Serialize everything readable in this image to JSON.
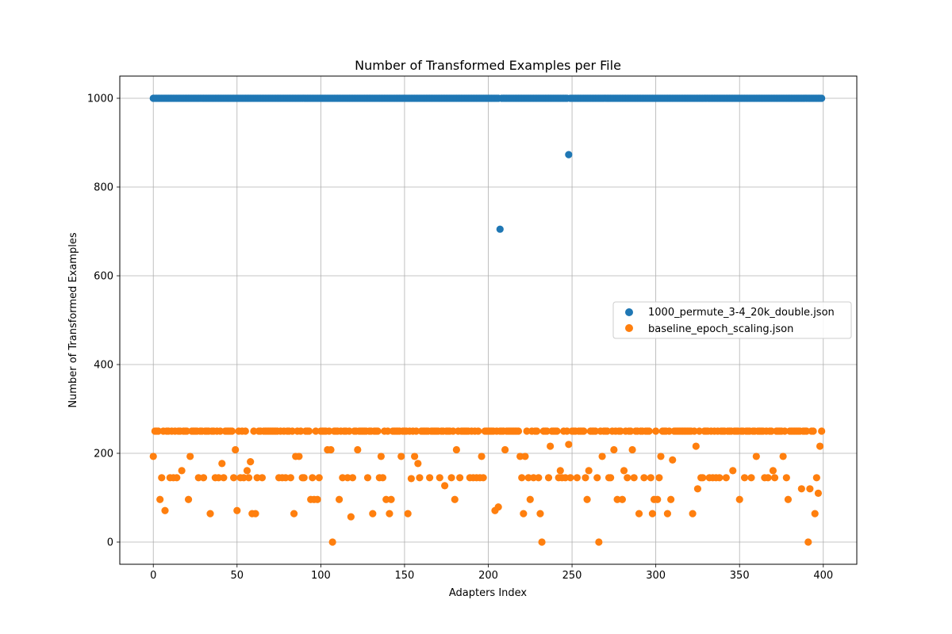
{
  "chart_data": {
    "type": "scatter",
    "title": "Number of Transformed Examples per File",
    "xlabel": "Adapters Index",
    "ylabel": "Number of Transformed Examples",
    "xlim": [
      -20,
      420
    ],
    "ylim": [
      -50,
      1050
    ],
    "xticks": [
      0,
      50,
      100,
      150,
      200,
      250,
      300,
      350,
      400
    ],
    "yticks": [
      0,
      200,
      400,
      600,
      800,
      1000
    ],
    "grid": true,
    "legend_position": "center-right",
    "series": [
      {
        "name": "1000_permute_3-4_20k_double.json",
        "color": "#1f77b4",
        "default_y": 1000,
        "x_range": [
          0,
          399
        ],
        "exceptions": [
          {
            "x": 207,
            "y": 705
          },
          {
            "x": 248,
            "y": 873
          }
        ]
      },
      {
        "name": "baseline_epoch_scaling.json",
        "color": "#ff7f0e",
        "default_y": 250,
        "x_range": [
          0,
          399
        ],
        "exceptions": [
          {
            "x": 0,
            "y": 193
          },
          {
            "x": 4,
            "y": 96
          },
          {
            "x": 5,
            "y": 145
          },
          {
            "x": 7,
            "y": 71
          },
          {
            "x": 10,
            "y": 145
          },
          {
            "x": 12,
            "y": 145
          },
          {
            "x": 14,
            "y": 145
          },
          {
            "x": 17,
            "y": 161
          },
          {
            "x": 21,
            "y": 96
          },
          {
            "x": 22,
            "y": 193
          },
          {
            "x": 27,
            "y": 145
          },
          {
            "x": 30,
            "y": 145
          },
          {
            "x": 34,
            "y": 64
          },
          {
            "x": 37,
            "y": 145
          },
          {
            "x": 39,
            "y": 145
          },
          {
            "x": 41,
            "y": 177
          },
          {
            "x": 42,
            "y": 145
          },
          {
            "x": 48,
            "y": 145
          },
          {
            "x": 49,
            "y": 208
          },
          {
            "x": 50,
            "y": 71
          },
          {
            "x": 52,
            "y": 145
          },
          {
            "x": 54,
            "y": 145
          },
          {
            "x": 56,
            "y": 161
          },
          {
            "x": 57,
            "y": 145
          },
          {
            "x": 58,
            "y": 181
          },
          {
            "x": 59,
            "y": 64
          },
          {
            "x": 61,
            "y": 64
          },
          {
            "x": 62,
            "y": 145
          },
          {
            "x": 65,
            "y": 145
          },
          {
            "x": 75,
            "y": 145
          },
          {
            "x": 77,
            "y": 145
          },
          {
            "x": 79,
            "y": 145
          },
          {
            "x": 82,
            "y": 145
          },
          {
            "x": 84,
            "y": 64
          },
          {
            "x": 85,
            "y": 193
          },
          {
            "x": 87,
            "y": 193
          },
          {
            "x": 89,
            "y": 145
          },
          {
            "x": 90,
            "y": 145
          },
          {
            "x": 94,
            "y": 96
          },
          {
            "x": 95,
            "y": 145
          },
          {
            "x": 96,
            "y": 96
          },
          {
            "x": 98,
            "y": 96
          },
          {
            "x": 99,
            "y": 145
          },
          {
            "x": 104,
            "y": 208
          },
          {
            "x": 106,
            "y": 208
          },
          {
            "x": 107,
            "y": 0
          },
          {
            "x": 111,
            "y": 96
          },
          {
            "x": 113,
            "y": 145
          },
          {
            "x": 116,
            "y": 145
          },
          {
            "x": 118,
            "y": 57
          },
          {
            "x": 119,
            "y": 145
          },
          {
            "x": 122,
            "y": 208
          },
          {
            "x": 128,
            "y": 145
          },
          {
            "x": 131,
            "y": 64
          },
          {
            "x": 135,
            "y": 145
          },
          {
            "x": 136,
            "y": 193
          },
          {
            "x": 137,
            "y": 145
          },
          {
            "x": 139,
            "y": 96
          },
          {
            "x": 141,
            "y": 64
          },
          {
            "x": 142,
            "y": 96
          },
          {
            "x": 148,
            "y": 193
          },
          {
            "x": 152,
            "y": 64
          },
          {
            "x": 154,
            "y": 143
          },
          {
            "x": 156,
            "y": 193
          },
          {
            "x": 158,
            "y": 177
          },
          {
            "x": 159,
            "y": 145
          },
          {
            "x": 165,
            "y": 145
          },
          {
            "x": 171,
            "y": 145
          },
          {
            "x": 174,
            "y": 127
          },
          {
            "x": 178,
            "y": 145
          },
          {
            "x": 180,
            "y": 96
          },
          {
            "x": 181,
            "y": 208
          },
          {
            "x": 183,
            "y": 145
          },
          {
            "x": 189,
            "y": 145
          },
          {
            "x": 191,
            "y": 145
          },
          {
            "x": 193,
            "y": 145
          },
          {
            "x": 195,
            "y": 145
          },
          {
            "x": 196,
            "y": 193
          },
          {
            "x": 197,
            "y": 145
          },
          {
            "x": 204,
            "y": 71
          },
          {
            "x": 206,
            "y": 79
          },
          {
            "x": 210,
            "y": 208
          },
          {
            "x": 219,
            "y": 193
          },
          {
            "x": 220,
            "y": 145
          },
          {
            "x": 221,
            "y": 64
          },
          {
            "x": 222,
            "y": 193
          },
          {
            "x": 224,
            "y": 145
          },
          {
            "x": 225,
            "y": 96
          },
          {
            "x": 227,
            "y": 145
          },
          {
            "x": 230,
            "y": 145
          },
          {
            "x": 231,
            "y": 64
          },
          {
            "x": 232,
            "y": 0
          },
          {
            "x": 236,
            "y": 145
          },
          {
            "x": 237,
            "y": 216
          },
          {
            "x": 242,
            "y": 145
          },
          {
            "x": 243,
            "y": 161
          },
          {
            "x": 244,
            "y": 145
          },
          {
            "x": 246,
            "y": 145
          },
          {
            "x": 248,
            "y": 220
          },
          {
            "x": 249,
            "y": 145
          },
          {
            "x": 253,
            "y": 145
          },
          {
            "x": 258,
            "y": 145
          },
          {
            "x": 259,
            "y": 96
          },
          {
            "x": 260,
            "y": 161
          },
          {
            "x": 265,
            "y": 145
          },
          {
            "x": 266,
            "y": 0
          },
          {
            "x": 268,
            "y": 193
          },
          {
            "x": 272,
            "y": 145
          },
          {
            "x": 273,
            "y": 145
          },
          {
            "x": 275,
            "y": 208
          },
          {
            "x": 277,
            "y": 96
          },
          {
            "x": 280,
            "y": 96
          },
          {
            "x": 281,
            "y": 161
          },
          {
            "x": 283,
            "y": 145
          },
          {
            "x": 286,
            "y": 208
          },
          {
            "x": 287,
            "y": 145
          },
          {
            "x": 290,
            "y": 64
          },
          {
            "x": 293,
            "y": 145
          },
          {
            "x": 297,
            "y": 145
          },
          {
            "x": 298,
            "y": 64
          },
          {
            "x": 299,
            "y": 96
          },
          {
            "x": 301,
            "y": 96
          },
          {
            "x": 302,
            "y": 145
          },
          {
            "x": 303,
            "y": 193
          },
          {
            "x": 307,
            "y": 64
          },
          {
            "x": 309,
            "y": 96
          },
          {
            "x": 310,
            "y": 185
          },
          {
            "x": 322,
            "y": 64
          },
          {
            "x": 324,
            "y": 216
          },
          {
            "x": 325,
            "y": 120
          },
          {
            "x": 327,
            "y": 145
          },
          {
            "x": 328,
            "y": 145
          },
          {
            "x": 332,
            "y": 145
          },
          {
            "x": 334,
            "y": 145
          },
          {
            "x": 336,
            "y": 145
          },
          {
            "x": 338,
            "y": 145
          },
          {
            "x": 342,
            "y": 145
          },
          {
            "x": 346,
            "y": 161
          },
          {
            "x": 350,
            "y": 96
          },
          {
            "x": 353,
            "y": 145
          },
          {
            "x": 357,
            "y": 145
          },
          {
            "x": 360,
            "y": 193
          },
          {
            "x": 365,
            "y": 145
          },
          {
            "x": 367,
            "y": 145
          },
          {
            "x": 370,
            "y": 161
          },
          {
            "x": 371,
            "y": 145
          },
          {
            "x": 376,
            "y": 193
          },
          {
            "x": 378,
            "y": 145
          },
          {
            "x": 379,
            "y": 96
          },
          {
            "x": 387,
            "y": 120
          },
          {
            "x": 391,
            "y": 0
          },
          {
            "x": 392,
            "y": 120
          },
          {
            "x": 395,
            "y": 64
          },
          {
            "x": 396,
            "y": 145
          },
          {
            "x": 397,
            "y": 110
          },
          {
            "x": 398,
            "y": 216
          }
        ]
      }
    ]
  }
}
